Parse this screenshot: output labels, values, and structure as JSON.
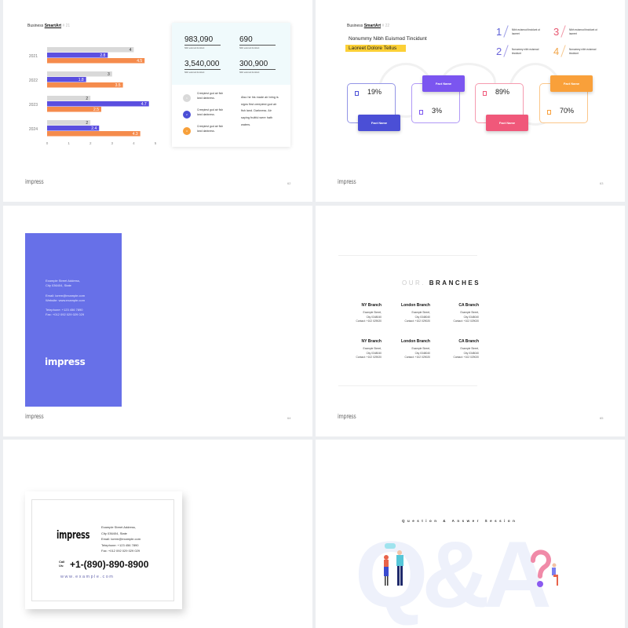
{
  "brand": "impress",
  "slides": [
    {
      "page": "62",
      "heading": {
        "prefix": "Business",
        "bold": "SmartArt",
        "suffix": "# 21"
      },
      "stats": [
        {
          "value": "983,090",
          "label": "Nibh euismod tincidunt"
        },
        {
          "value": "690",
          "label": "Nibh euismod tincidunt"
        },
        {
          "value": "3,540,000",
          "label": "Nibh euismod tincidunt"
        },
        {
          "value": "300,900",
          "label": "Nibh euismod tincidunt"
        }
      ],
      "legend": [
        {
          "num": "1",
          "text": "Creepiest god air fish land darkness.",
          "color": "#d9d9d9"
        },
        {
          "num": "2",
          "text": "Creepiest god air fish land darkness.",
          "color": "#4b4fd6"
        },
        {
          "num": "3",
          "text": "Creepiest god air fish land darkness.",
          "color": "#f7a03a"
        }
      ],
      "paragraph": "Also he his made air bring is signs first creepiest god air fish land. Darkness. Air saying fruitful were hath waters."
    },
    {
      "page": "63",
      "heading": {
        "prefix": "Business",
        "bold": "SmartArt",
        "suffix": "# 22"
      },
      "title": "Nonummy Nibh Euismod Tincidunt",
      "highlight": "Laoreet Dolore Tellus",
      "numbered": [
        {
          "n": "1",
          "text": "Nibh euismod tincidunt ut laoreet",
          "color": "#5b5fd6"
        },
        {
          "n": "2",
          "text": "Nonummy nibh euismod tincidunt",
          "color": "#6b63d9"
        },
        {
          "n": "3",
          "text": "Nibh euismod tincidunt ut laoreet",
          "color": "#e8556f"
        },
        {
          "n": "4",
          "text": "Nonummy nibh euismod tincidunt",
          "color": "#f2a64a"
        }
      ],
      "facts": [
        {
          "pct": "19%",
          "label": "Fact Name",
          "color": "#4b4fd6"
        },
        {
          "pct": "3%",
          "label": "Fact Name",
          "color": "#7b55f0"
        },
        {
          "pct": "89%",
          "label": "Fact Name",
          "color": "#f0587a"
        },
        {
          "pct": "70%",
          "label": "Fact Name",
          "color": "#f9a03a"
        }
      ]
    },
    {
      "page": "64",
      "address": "Example Street Address,",
      "city": "City 036404,  State",
      "email": "Email: lorem@example.com",
      "website": "Website: www.example.com",
      "tel": "Telephone: +123 456 7890",
      "fax": "Fax: +012 092 029 029 029",
      "color": "#6770e8"
    },
    {
      "page": "65",
      "title_light": "OUR.",
      "title_bold": "BRANCHES",
      "branches": [
        {
          "name": "NY Branch",
          "street": "Example Street,",
          "city": "City 0348040",
          "contact": "Contact: +102 029020"
        },
        {
          "name": "London Branch",
          "street": "Example Street,",
          "city": "City 0348040",
          "contact": "Contact: +102 029020"
        },
        {
          "name": "CA Branch",
          "street": "Example Street,",
          "city": "City 0348040",
          "contact": "Contact: +102 029020"
        },
        {
          "name": "NY Branch",
          "street": "Example Street,",
          "city": "City 0348040",
          "contact": "Contact: +102 029020"
        },
        {
          "name": "London Branch",
          "street": "Example Street,",
          "city": "City 0348040",
          "contact": "Contact: +102 029020"
        },
        {
          "name": "CA Branch",
          "street": "Example Street,",
          "city": "City 0348040",
          "contact": "Contact: +102 029020"
        }
      ]
    },
    {
      "address": "Example Street Address,",
      "city": "City 036404,  State",
      "email": "Email: lorem@example.com",
      "tel": "Telephone: +123 456 7890",
      "fax": "Fax: +012 092 029 029 029",
      "call_label": "Call Us:",
      "phone": "+1-(890)-890-8900",
      "web": "www.example.com"
    },
    {
      "subtitle": "Question & Answer Session",
      "bg_text": "Q&A"
    }
  ],
  "chart_data": {
    "type": "bar",
    "orientation": "horizontal",
    "categories": [
      "2021",
      "2022",
      "2023",
      "2024"
    ],
    "series": [
      {
        "values": [
          4,
          3,
          2,
          2
        ],
        "color": "#d9d9d9"
      },
      {
        "values": [
          2.8,
          1.8,
          4.7,
          2.4
        ],
        "color": "#5b4fe0"
      },
      {
        "values": [
          4.5,
          3.5,
          2.5,
          4.3
        ],
        "color": "#f58b4c"
      }
    ],
    "xticks": [
      "0",
      "1",
      "2",
      "3",
      "4",
      "5"
    ],
    "xlim": [
      0,
      5
    ]
  }
}
